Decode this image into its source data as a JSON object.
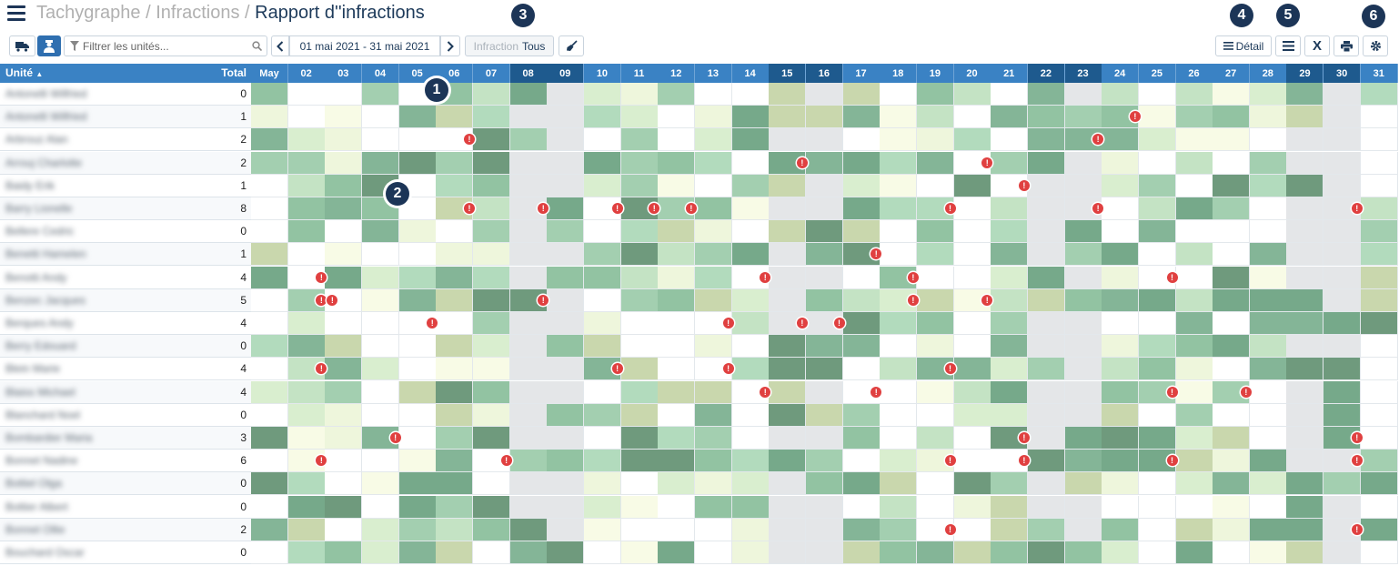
{
  "breadcrumb": {
    "part1": "Tachygraphe",
    "sep": "/",
    "part2": "Infractions",
    "current": "Rapport d''infractions"
  },
  "badges": {
    "b1": "1",
    "b2": "2",
    "b3": "3",
    "b4": "4",
    "b5": "5",
    "b6": "6"
  },
  "toolbar": {
    "filter_placeholder": "Filtrer les unités...",
    "date_range": "01 mai 2021 - 31 mai 2021",
    "infraction_label": "Infraction",
    "infraction_value": "Tous",
    "detail_label": "Détail",
    "excel_label": "X"
  },
  "table": {
    "col_unit": "Unité",
    "col_total": "Total",
    "days": [
      "May",
      "02",
      "03",
      "04",
      "05",
      "06",
      "07",
      "08",
      "09",
      "10",
      "11",
      "12",
      "13",
      "14",
      "15",
      "16",
      "17",
      "18",
      "19",
      "20",
      "21",
      "22",
      "23",
      "24",
      "25",
      "26",
      "27",
      "28",
      "29",
      "30",
      "31"
    ],
    "weekend_indices": [
      7,
      8,
      14,
      15,
      21,
      22,
      28,
      29
    ],
    "rows": [
      {
        "name": "Antonelli Wilfried",
        "total": "0"
      },
      {
        "name": "Antonelli Wilfried",
        "total": "1"
      },
      {
        "name": "Arbrouz Alan",
        "total": "2"
      },
      {
        "name": "Arrouj Charlotte",
        "total": "2"
      },
      {
        "name": "Baidy Erik",
        "total": "1"
      },
      {
        "name": "Barry Lionelle",
        "total": "8"
      },
      {
        "name": "Bellere Cedric",
        "total": "0"
      },
      {
        "name": "Benetti Hamelen",
        "total": "1"
      },
      {
        "name": "Benotti Andy",
        "total": "4"
      },
      {
        "name": "Benzec Jacques",
        "total": "5"
      },
      {
        "name": "Berques Andy",
        "total": "4"
      },
      {
        "name": "Berry Edouard",
        "total": "0"
      },
      {
        "name": "Blein Marie",
        "total": "4"
      },
      {
        "name": "Blaiss Michael",
        "total": "4"
      },
      {
        "name": "Blanchard Noel",
        "total": "0"
      },
      {
        "name": "Bombardier Maria",
        "total": "3"
      },
      {
        "name": "Bonnet Nadine",
        "total": "6"
      },
      {
        "name": "Bottiel Olga",
        "total": "0"
      },
      {
        "name": "Bottier Albert",
        "total": "0"
      },
      {
        "name": "Bonnet Ollie",
        "total": "2"
      },
      {
        "name": "Bouchard Oscar",
        "total": "0"
      }
    ]
  },
  "colors": {
    "header": "#3a82c4",
    "header_weekend": "#1e5a8e",
    "badge": "#1c3557",
    "infraction": "#e04040"
  },
  "icons": [
    "menu-icon",
    "truck-icon",
    "driver-icon",
    "filter-icon",
    "search-icon",
    "chevron-left-icon",
    "chevron-right-icon",
    "broom-icon",
    "list-icon",
    "excel-icon",
    "print-icon",
    "gear-icon",
    "sort-asc-icon"
  ]
}
